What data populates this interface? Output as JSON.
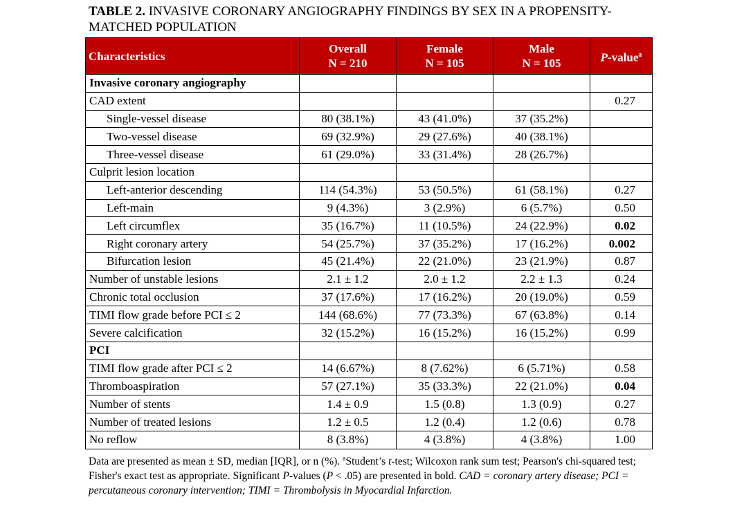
{
  "title": {
    "label": "TABLE 2.",
    "text": " INVASIVE CORONARY ANGIOGRAPHY FINDINGS BY SEX IN A PROPENSITY-MATCHED POPULATION"
  },
  "header": {
    "characteristics": "Characteristics",
    "overall": "Overall",
    "overall_n": "N = 210",
    "female": "Female",
    "female_n": "N = 105",
    "male": "Male",
    "male_n": "N = 105",
    "p_italic": "P",
    "p_rest": "-value",
    "p_sup": "a"
  },
  "rows": [
    {
      "label": "Invasive coronary angiography",
      "section": true,
      "overall": "",
      "female": "",
      "male": "",
      "p": ""
    },
    {
      "label": "CAD extent",
      "overall": "",
      "female": "",
      "male": "",
      "p": "0.27"
    },
    {
      "label": "Single-vessel disease",
      "indent": true,
      "overall": "80 (38.1%)",
      "female": "43 (41.0%)",
      "male": "37 (35.2%)",
      "p": ""
    },
    {
      "label": "Two-vessel disease",
      "indent": true,
      "overall": "69 (32.9%)",
      "female": "29 (27.6%)",
      "male": "40 (38.1%)",
      "p": ""
    },
    {
      "label": "Three-vessel disease",
      "indent": true,
      "overall": "61 (29.0%)",
      "female": "33 (31.4%)",
      "male": "28 (26.7%)",
      "p": ""
    },
    {
      "label": "Culprit lesion location",
      "overall": "",
      "female": "",
      "male": "",
      "p": ""
    },
    {
      "label": "Left-anterior descending",
      "indent": true,
      "overall": "114 (54.3%)",
      "female": "53 (50.5%)",
      "male": "61 (58.1%)",
      "p": "0.27"
    },
    {
      "label": "Left-main",
      "indent": true,
      "overall": "9 (4.3%)",
      "female": "3 (2.9%)",
      "male": "6 (5.7%)",
      "p": "0.50"
    },
    {
      "label": "Left circumflex",
      "indent": true,
      "overall": "35 (16.7%)",
      "female": "11 (10.5%)",
      "male": "24 (22.9%)",
      "p": "0.02",
      "sig": true
    },
    {
      "label": "Right coronary artery",
      "indent": true,
      "overall": "54 (25.7%)",
      "female": "37 (35.2%)",
      "male": "17 (16.2%)",
      "p": "0.002",
      "sig": true
    },
    {
      "label": "Bifurcation lesion",
      "indent": true,
      "overall": "45 (21.4%)",
      "female": "22 (21.0%)",
      "male": "23 (21.9%)",
      "p": "0.87"
    },
    {
      "label": "Number of unstable lesions",
      "overall": "2.1 ± 1.2",
      "female": "2.0 ± 1.2",
      "male": "2.2 ± 1.3",
      "p": "0.24"
    },
    {
      "label": "Chronic total occlusion",
      "overall": "37 (17.6%)",
      "female": "17 (16.2%)",
      "male": "20 (19.0%)",
      "p": "0.59"
    },
    {
      "label": "TIMI flow grade before PCI ≤ 2",
      "overall": "144 (68.6%)",
      "female": "77 (73.3%)",
      "male": "67 (63.8%)",
      "p": "0.14"
    },
    {
      "label": "Severe calcification",
      "overall": "32 (15.2%)",
      "female": "16 (15.2%)",
      "male": "16 (15.2%)",
      "p": "0.99"
    },
    {
      "label": "PCI",
      "section": true,
      "overall": "",
      "female": "",
      "male": "",
      "p": ""
    },
    {
      "label": "TIMI flow grade after PCI ≤ 2",
      "overall": "14 (6.67%)",
      "female": "8 (7.62%)",
      "male": "6 (5.71%)",
      "p": "0.58"
    },
    {
      "label": "Thromboaspiration",
      "overall": "57 (27.1%)",
      "female": "35 (33.3%)",
      "male": "22 (21.0%)",
      "p": "0.04",
      "sig": true
    },
    {
      "label": "Number of stents",
      "overall": "1.4 ± 0.9",
      "female": "1.5 (0.8)",
      "male": "1.3 (0.9)",
      "p": "0.27"
    },
    {
      "label": "Number of treated lesions",
      "overall": "1.2 ± 0.5",
      "female": "1.2 (0.4)",
      "male": "1.2 (0.6)",
      "p": "0.78"
    },
    {
      "label": "No reflow",
      "overall": "8 (3.8%)",
      "female": "4 (3.8%)",
      "male": "4 (3.8%)",
      "p": "1.00"
    }
  ],
  "footnote": {
    "a": "Data are presented as mean ± SD, median [IQR], or n (%).  ",
    "sup": "a",
    "b": "Student’s ",
    "c": "t",
    "d": "-test; Wilcoxon rank sum test; Pearson's chi-squared test; Fisher's exact test as appropriate. Significant ",
    "e": "P",
    "f": "-values (",
    "g": "P",
    "h": " < .05) are presented in bold. ",
    "i": "CAD = coronary artery disease; PCI = percutaneous coronary intervention; TIMI = Thrombolysis in Myocardial Infarction."
  }
}
